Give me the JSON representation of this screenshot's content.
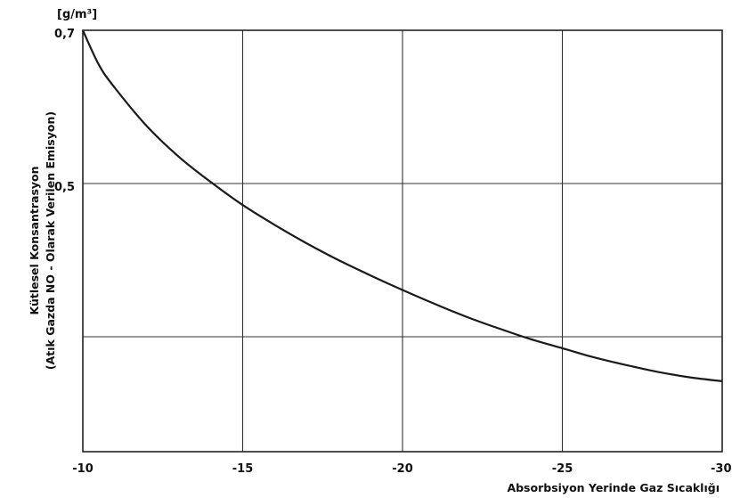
{
  "chart_data": {
    "type": "line",
    "unit": "[g/m³]",
    "xlabel": "Absorbsiyon   Yerinde   Gaz   Sıcaklığı",
    "ylabel_lines": [
      "Kütlesel   Konsantrasyon",
      "(Atık   Gazda   NO - Olarak   Verilen   Emisyon)"
    ],
    "x_ticks": [
      {
        "value": -10,
        "label": "-10"
      },
      {
        "value": -15,
        "label": "-15"
      },
      {
        "value": -20,
        "label": "-20"
      },
      {
        "value": -25,
        "label": "-25"
      },
      {
        "value": -30,
        "label": "-30°"
      }
    ],
    "y_ticks": [
      {
        "value": 0.7,
        "label": "0,7"
      },
      {
        "value": 0.5,
        "label": "0,5"
      }
    ],
    "xlim": [
      -10,
      -30
    ],
    "ylim": [
      0.15,
      0.7
    ],
    "y_gridlines": [
      0.5,
      0.3
    ],
    "x_gridlines": [
      -15,
      -20,
      -25
    ],
    "grid": true,
    "series": [
      {
        "x": [
          -10.0,
          -10.5,
          -11,
          -12,
          -13,
          -14,
          -15,
          -16,
          -17,
          -18,
          -19,
          -20,
          -21,
          -22,
          -23,
          -24,
          -25,
          -26,
          -27,
          -28,
          -29,
          -30
        ],
        "y": [
          0.7,
          0.655,
          0.625,
          0.575,
          0.535,
          0.502,
          0.472,
          0.446,
          0.422,
          0.4,
          0.38,
          0.361,
          0.343,
          0.326,
          0.311,
          0.297,
          0.285,
          0.273,
          0.263,
          0.254,
          0.247,
          0.242
        ]
      }
    ]
  }
}
